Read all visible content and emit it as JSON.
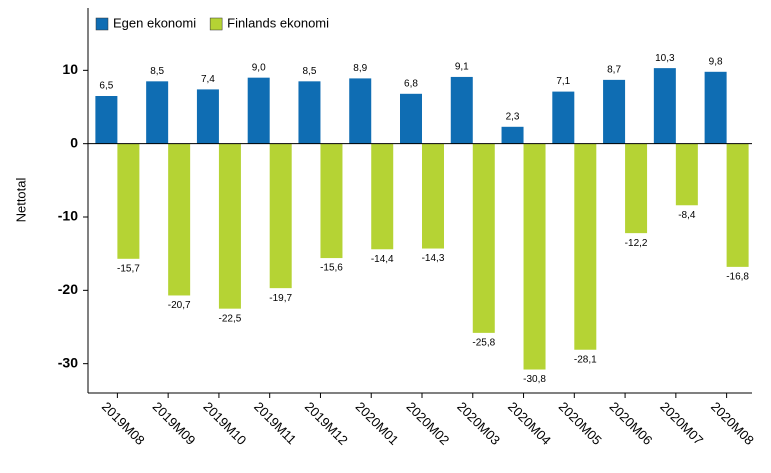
{
  "chart_data": {
    "type": "bar",
    "categories": [
      "2019M08",
      "2019M09",
      "2019M10",
      "2019M11",
      "2019M12",
      "2020M01",
      "2020M02",
      "2020M03",
      "2020M04",
      "2020M05",
      "2020M06",
      "2020M07",
      "2020M08"
    ],
    "series": [
      {
        "name": "Egen ekonomi",
        "color": "#0f6db3",
        "values": [
          6.5,
          8.5,
          7.4,
          9.0,
          8.5,
          8.9,
          6.8,
          9.1,
          2.3,
          7.1,
          8.7,
          10.3,
          9.8
        ],
        "value_labels": [
          "6,5",
          "8,5",
          "7,4",
          "9,0",
          "8,5",
          "8,9",
          "6,8",
          "9,1",
          "2,3",
          "7,1",
          "8,7",
          "10,3",
          "9,8"
        ]
      },
      {
        "name": "Finlands ekonomi",
        "color": "#b5d334",
        "values": [
          -15.7,
          -20.7,
          -22.5,
          -19.7,
          -15.6,
          -14.4,
          -14.3,
          -25.8,
          -30.8,
          -28.1,
          -12.2,
          -8.4,
          -16.8
        ],
        "value_labels": [
          "-15,7",
          "-20,7",
          "-22,5",
          "-19,7",
          "-15,6",
          "-14,4",
          "-14,3",
          "-25,8",
          "-30,8",
          "-28,1",
          "-12,2",
          "-8,4",
          "-16,8"
        ]
      }
    ],
    "y_label": "Nettotal",
    "ylim": [
      -34,
      18.5
    ],
    "yticks": [
      10,
      0,
      -10,
      -20,
      -30
    ],
    "legend": "top-left"
  }
}
